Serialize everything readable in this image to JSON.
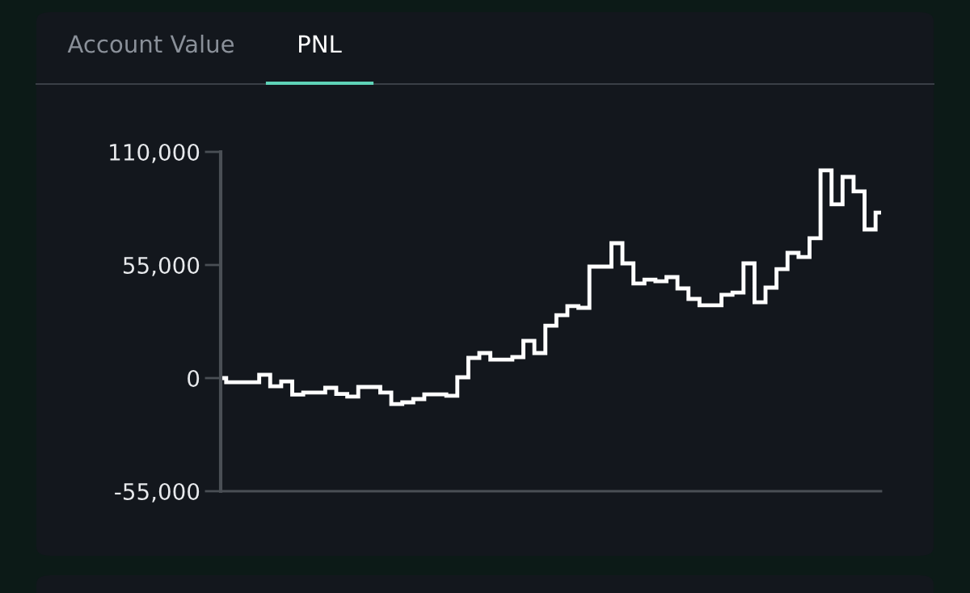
{
  "chart_data": {
    "type": "step",
    "annotations": [
      "Account Value",
      "PNL"
    ],
    "categories": [
      null,
      null,
      null,
      null,
      null,
      null,
      null,
      null,
      null,
      null,
      null,
      null,
      null,
      null,
      null,
      null,
      null,
      null,
      null,
      null,
      null,
      null,
      null,
      null,
      null,
      null,
      null,
      null,
      null,
      null,
      null,
      null,
      null,
      null,
      null,
      null,
      null,
      null,
      null,
      null,
      null,
      null,
      null,
      null,
      null,
      null,
      null,
      null,
      null,
      null,
      null,
      null,
      null,
      null,
      null,
      null,
      null,
      null,
      null,
      null,
      null
    ],
    "series": [
      {
        "color": "#ffffff",
        "values": [
          0,
          -2000,
          -2000,
          -2000,
          1600,
          -4000,
          -1600,
          -8000,
          -7000,
          -7000,
          -4700,
          -7700,
          -9000,
          -4300,
          -4300,
          -7000,
          -12600,
          -11800,
          -10200,
          -7900,
          -7900,
          -8600,
          400,
          9800,
          12200,
          9000,
          9000,
          10200,
          18100,
          12200,
          25500,
          30600,
          35000,
          34200,
          54200,
          54200,
          65600,
          55800,
          46000,
          47900,
          47100,
          49100,
          43600,
          38500,
          35400,
          35400,
          40500,
          41600,
          55800,
          36900,
          44000,
          53000,
          60900,
          58900,
          68000,
          101000,
          84500,
          97800,
          90800,
          72300,
          80500
        ]
      }
    ],
    "ylim": [
      -55000,
      110000
    ],
    "yticks": [
      {
        "value": -55000,
        "label": "-55,000"
      },
      {
        "value": 0,
        "label": "0"
      },
      {
        "value": 55000,
        "label": "55,000"
      },
      {
        "value": 110000,
        "label": "110,000"
      }
    ],
    "grid": false,
    "legend": false,
    "line_style": "solid",
    "marker": "none"
  }
}
